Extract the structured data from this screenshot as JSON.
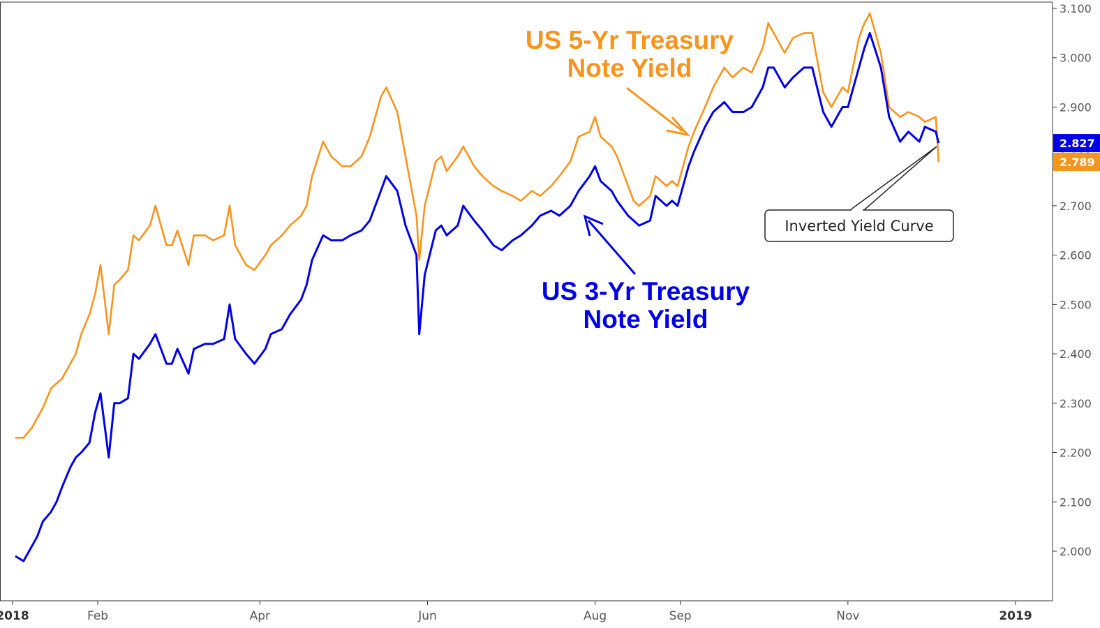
{
  "chart_data": {
    "type": "line",
    "title": "",
    "xlabel": "",
    "ylabel": "",
    "ylim": [
      1.9,
      3.1
    ],
    "grid": false,
    "x_ticks": [
      {
        "label": "2018",
        "date": "2018-01-01",
        "strong": true
      },
      {
        "label": "Feb",
        "date": "2018-02-01"
      },
      {
        "label": "Apr",
        "date": "2018-04-01"
      },
      {
        "label": "Jun",
        "date": "2018-06-01"
      },
      {
        "label": "Aug",
        "date": "2018-08-01"
      },
      {
        "label": "Sep",
        "date": "2018-09-01"
      },
      {
        "label": "Nov",
        "date": "2018-11-01"
      },
      {
        "label": "2019",
        "date": "2019-01-01",
        "strong": true
      }
    ],
    "y_ticks": [
      "2.000",
      "2.100",
      "2.200",
      "2.300",
      "2.400",
      "2.500",
      "2.600",
      "2.700",
      "2.800",
      "2.900",
      "3.000",
      "3.100"
    ],
    "series": [
      {
        "name": "US 5-Yr Treasury Note Yield",
        "color": "#f7941d",
        "last_value": "2.789",
        "points": [
          [
            "2018-01-02",
            2.23
          ],
          [
            "2018-01-05",
            2.23
          ],
          [
            "2018-01-08",
            2.25
          ],
          [
            "2018-01-10",
            2.27
          ],
          [
            "2018-01-12",
            2.29
          ],
          [
            "2018-01-15",
            2.33
          ],
          [
            "2018-01-17",
            2.34
          ],
          [
            "2018-01-19",
            2.35
          ],
          [
            "2018-01-22",
            2.38
          ],
          [
            "2018-01-24",
            2.4
          ],
          [
            "2018-01-26",
            2.44
          ],
          [
            "2018-01-29",
            2.48
          ],
          [
            "2018-01-31",
            2.52
          ],
          [
            "2018-02-02",
            2.58
          ],
          [
            "2018-02-05",
            2.44
          ],
          [
            "2018-02-07",
            2.54
          ],
          [
            "2018-02-09",
            2.55
          ],
          [
            "2018-02-12",
            2.57
          ],
          [
            "2018-02-14",
            2.64
          ],
          [
            "2018-02-16",
            2.63
          ],
          [
            "2018-02-20",
            2.66
          ],
          [
            "2018-02-22",
            2.7
          ],
          [
            "2018-02-26",
            2.62
          ],
          [
            "2018-02-28",
            2.62
          ],
          [
            "2018-03-02",
            2.65
          ],
          [
            "2018-03-06",
            2.58
          ],
          [
            "2018-03-08",
            2.64
          ],
          [
            "2018-03-12",
            2.64
          ],
          [
            "2018-03-15",
            2.63
          ],
          [
            "2018-03-19",
            2.64
          ],
          [
            "2018-03-21",
            2.7
          ],
          [
            "2018-03-23",
            2.62
          ],
          [
            "2018-03-27",
            2.58
          ],
          [
            "2018-03-30",
            2.57
          ],
          [
            "2018-04-03",
            2.6
          ],
          [
            "2018-04-05",
            2.62
          ],
          [
            "2018-04-09",
            2.64
          ],
          [
            "2018-04-12",
            2.66
          ],
          [
            "2018-04-16",
            2.68
          ],
          [
            "2018-04-18",
            2.7
          ],
          [
            "2018-04-20",
            2.76
          ],
          [
            "2018-04-24",
            2.83
          ],
          [
            "2018-04-27",
            2.8
          ],
          [
            "2018-05-01",
            2.78
          ],
          [
            "2018-05-04",
            2.78
          ],
          [
            "2018-05-08",
            2.8
          ],
          [
            "2018-05-11",
            2.84
          ],
          [
            "2018-05-15",
            2.92
          ],
          [
            "2018-05-17",
            2.94
          ],
          [
            "2018-05-21",
            2.89
          ],
          [
            "2018-05-24",
            2.8
          ],
          [
            "2018-05-28",
            2.68
          ],
          [
            "2018-05-29",
            2.59
          ],
          [
            "2018-05-31",
            2.7
          ],
          [
            "2018-06-04",
            2.79
          ],
          [
            "2018-06-06",
            2.8
          ],
          [
            "2018-06-08",
            2.77
          ],
          [
            "2018-06-12",
            2.8
          ],
          [
            "2018-06-14",
            2.82
          ],
          [
            "2018-06-18",
            2.78
          ],
          [
            "2018-06-21",
            2.76
          ],
          [
            "2018-06-25",
            2.74
          ],
          [
            "2018-06-28",
            2.73
          ],
          [
            "2018-07-02",
            2.72
          ],
          [
            "2018-07-05",
            2.71
          ],
          [
            "2018-07-09",
            2.73
          ],
          [
            "2018-07-12",
            2.72
          ],
          [
            "2018-07-16",
            2.74
          ],
          [
            "2018-07-19",
            2.76
          ],
          [
            "2018-07-23",
            2.79
          ],
          [
            "2018-07-26",
            2.84
          ],
          [
            "2018-07-30",
            2.85
          ],
          [
            "2018-08-01",
            2.88
          ],
          [
            "2018-08-03",
            2.84
          ],
          [
            "2018-08-07",
            2.82
          ],
          [
            "2018-08-09",
            2.8
          ],
          [
            "2018-08-13",
            2.74
          ],
          [
            "2018-08-15",
            2.71
          ],
          [
            "2018-08-17",
            2.7
          ],
          [
            "2018-08-21",
            2.72
          ],
          [
            "2018-08-23",
            2.76
          ],
          [
            "2018-08-27",
            2.74
          ],
          [
            "2018-08-29",
            2.75
          ],
          [
            "2018-08-31",
            2.74
          ],
          [
            "2018-09-04",
            2.82
          ],
          [
            "2018-09-06",
            2.85
          ],
          [
            "2018-09-10",
            2.9
          ],
          [
            "2018-09-13",
            2.94
          ],
          [
            "2018-09-17",
            2.98
          ],
          [
            "2018-09-20",
            2.96
          ],
          [
            "2018-09-24",
            2.98
          ],
          [
            "2018-09-27",
            2.97
          ],
          [
            "2018-10-01",
            3.02
          ],
          [
            "2018-10-03",
            3.07
          ],
          [
            "2018-10-05",
            3.05
          ],
          [
            "2018-10-09",
            3.01
          ],
          [
            "2018-10-12",
            3.04
          ],
          [
            "2018-10-16",
            3.05
          ],
          [
            "2018-10-19",
            3.05
          ],
          [
            "2018-10-23",
            2.93
          ],
          [
            "2018-10-26",
            2.9
          ],
          [
            "2018-10-30",
            2.94
          ],
          [
            "2018-11-01",
            2.93
          ],
          [
            "2018-11-05",
            3.04
          ],
          [
            "2018-11-07",
            3.07
          ],
          [
            "2018-11-09",
            3.09
          ],
          [
            "2018-11-13",
            3.01
          ],
          [
            "2018-11-16",
            2.9
          ],
          [
            "2018-11-20",
            2.88
          ],
          [
            "2018-11-23",
            2.89
          ],
          [
            "2018-11-27",
            2.88
          ],
          [
            "2018-11-29",
            2.87
          ],
          [
            "2018-12-03",
            2.88
          ],
          [
            "2018-12-04",
            2.789
          ]
        ]
      },
      {
        "name": "US 3-Yr Treasury Note Yield",
        "color": "#0000e6",
        "last_value": "2.827",
        "points": [
          [
            "2018-01-02",
            1.99
          ],
          [
            "2018-01-05",
            1.98
          ],
          [
            "2018-01-08",
            2.01
          ],
          [
            "2018-01-10",
            2.03
          ],
          [
            "2018-01-12",
            2.06
          ],
          [
            "2018-01-15",
            2.08
          ],
          [
            "2018-01-17",
            2.1
          ],
          [
            "2018-01-19",
            2.13
          ],
          [
            "2018-01-22",
            2.17
          ],
          [
            "2018-01-24",
            2.19
          ],
          [
            "2018-01-26",
            2.2
          ],
          [
            "2018-01-29",
            2.22
          ],
          [
            "2018-01-31",
            2.28
          ],
          [
            "2018-02-02",
            2.32
          ],
          [
            "2018-02-05",
            2.19
          ],
          [
            "2018-02-07",
            2.3
          ],
          [
            "2018-02-09",
            2.3
          ],
          [
            "2018-02-12",
            2.31
          ],
          [
            "2018-02-14",
            2.4
          ],
          [
            "2018-02-16",
            2.39
          ],
          [
            "2018-02-20",
            2.42
          ],
          [
            "2018-02-22",
            2.44
          ],
          [
            "2018-02-26",
            2.38
          ],
          [
            "2018-02-28",
            2.38
          ],
          [
            "2018-03-02",
            2.41
          ],
          [
            "2018-03-06",
            2.36
          ],
          [
            "2018-03-08",
            2.41
          ],
          [
            "2018-03-12",
            2.42
          ],
          [
            "2018-03-15",
            2.42
          ],
          [
            "2018-03-19",
            2.43
          ],
          [
            "2018-03-21",
            2.5
          ],
          [
            "2018-03-23",
            2.43
          ],
          [
            "2018-03-27",
            2.4
          ],
          [
            "2018-03-30",
            2.38
          ],
          [
            "2018-04-03",
            2.41
          ],
          [
            "2018-04-05",
            2.44
          ],
          [
            "2018-04-09",
            2.45
          ],
          [
            "2018-04-12",
            2.48
          ],
          [
            "2018-04-16",
            2.51
          ],
          [
            "2018-04-18",
            2.54
          ],
          [
            "2018-04-20",
            2.59
          ],
          [
            "2018-04-24",
            2.64
          ],
          [
            "2018-04-27",
            2.63
          ],
          [
            "2018-05-01",
            2.63
          ],
          [
            "2018-05-04",
            2.64
          ],
          [
            "2018-05-08",
            2.65
          ],
          [
            "2018-05-11",
            2.67
          ],
          [
            "2018-05-15",
            2.73
          ],
          [
            "2018-05-17",
            2.76
          ],
          [
            "2018-05-21",
            2.73
          ],
          [
            "2018-05-24",
            2.66
          ],
          [
            "2018-05-28",
            2.6
          ],
          [
            "2018-05-29",
            2.44
          ],
          [
            "2018-05-31",
            2.56
          ],
          [
            "2018-06-04",
            2.65
          ],
          [
            "2018-06-06",
            2.66
          ],
          [
            "2018-06-08",
            2.64
          ],
          [
            "2018-06-12",
            2.66
          ],
          [
            "2018-06-14",
            2.7
          ],
          [
            "2018-06-18",
            2.67
          ],
          [
            "2018-06-21",
            2.65
          ],
          [
            "2018-06-25",
            2.62
          ],
          [
            "2018-06-28",
            2.61
          ],
          [
            "2018-07-02",
            2.63
          ],
          [
            "2018-07-05",
            2.64
          ],
          [
            "2018-07-09",
            2.66
          ],
          [
            "2018-07-12",
            2.68
          ],
          [
            "2018-07-16",
            2.69
          ],
          [
            "2018-07-19",
            2.68
          ],
          [
            "2018-07-23",
            2.7
          ],
          [
            "2018-07-26",
            2.73
          ],
          [
            "2018-07-30",
            2.76
          ],
          [
            "2018-08-01",
            2.78
          ],
          [
            "2018-08-03",
            2.75
          ],
          [
            "2018-08-07",
            2.73
          ],
          [
            "2018-08-09",
            2.71
          ],
          [
            "2018-08-13",
            2.68
          ],
          [
            "2018-08-15",
            2.67
          ],
          [
            "2018-08-17",
            2.66
          ],
          [
            "2018-08-21",
            2.67
          ],
          [
            "2018-08-23",
            2.72
          ],
          [
            "2018-08-27",
            2.7
          ],
          [
            "2018-08-29",
            2.71
          ],
          [
            "2018-08-31",
            2.7
          ],
          [
            "2018-09-04",
            2.78
          ],
          [
            "2018-09-06",
            2.81
          ],
          [
            "2018-09-10",
            2.86
          ],
          [
            "2018-09-13",
            2.89
          ],
          [
            "2018-09-17",
            2.91
          ],
          [
            "2018-09-20",
            2.89
          ],
          [
            "2018-09-24",
            2.89
          ],
          [
            "2018-09-27",
            2.9
          ],
          [
            "2018-10-01",
            2.94
          ],
          [
            "2018-10-03",
            2.98
          ],
          [
            "2018-10-05",
            2.98
          ],
          [
            "2018-10-09",
            2.94
          ],
          [
            "2018-10-12",
            2.96
          ],
          [
            "2018-10-16",
            2.98
          ],
          [
            "2018-10-19",
            2.98
          ],
          [
            "2018-10-23",
            2.89
          ],
          [
            "2018-10-26",
            2.86
          ],
          [
            "2018-10-30",
            2.9
          ],
          [
            "2018-11-01",
            2.9
          ],
          [
            "2018-11-05",
            2.98
          ],
          [
            "2018-11-07",
            3.02
          ],
          [
            "2018-11-09",
            3.05
          ],
          [
            "2018-11-13",
            2.98
          ],
          [
            "2018-11-16",
            2.88
          ],
          [
            "2018-11-20",
            2.83
          ],
          [
            "2018-11-23",
            2.85
          ],
          [
            "2018-11-27",
            2.83
          ],
          [
            "2018-11-29",
            2.86
          ],
          [
            "2018-12-03",
            2.85
          ],
          [
            "2018-12-04",
            2.827
          ]
        ]
      }
    ],
    "annotations": [
      {
        "id": "five",
        "lines": [
          "US 5-Yr Treasury",
          "Note Yield"
        ],
        "color": "#f7941d"
      },
      {
        "id": "three",
        "lines": [
          "US 3-Yr Treasury",
          "Note Yield"
        ],
        "color": "#0000e6"
      },
      {
        "id": "callout",
        "text": "Inverted Yield Curve",
        "color": "#222222"
      }
    ]
  }
}
